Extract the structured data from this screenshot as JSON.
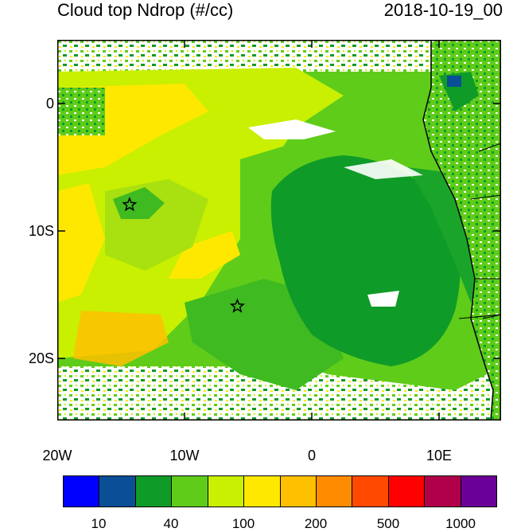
{
  "header": {
    "title": "Cloud top Ndrop (#/cc)",
    "datetime": "2018-10-19_00"
  },
  "axes": {
    "lat_labels": [
      "0",
      "10S",
      "20S"
    ],
    "lon_labels": [
      "20W",
      "10W",
      "0",
      "10E"
    ]
  },
  "markers": [
    {
      "name": "star-marker",
      "lon": -14.3,
      "lat": -8.0
    },
    {
      "name": "star-marker",
      "lon": -5.8,
      "lat": -16.0
    }
  ],
  "colorbar": {
    "colors": [
      "#0000ff",
      "#0a4f96",
      "#0f9b28",
      "#5fcc1a",
      "#c8f000",
      "#ffe800",
      "#ffc000",
      "#ff8c00",
      "#ff4a00",
      "#ff0000",
      "#b0004a",
      "#6a0098"
    ],
    "labels": [
      "10",
      "40",
      "100",
      "200",
      "500",
      "1000"
    ]
  },
  "map_colors": {
    "dark_green": "#0f9b28",
    "mid_green": "#3fba20",
    "light_green": "#5fcc1a",
    "yellow_green": "#c8f000",
    "yellow": "#ffe800",
    "orange": "#ffc000",
    "white": "#ffffff"
  }
}
